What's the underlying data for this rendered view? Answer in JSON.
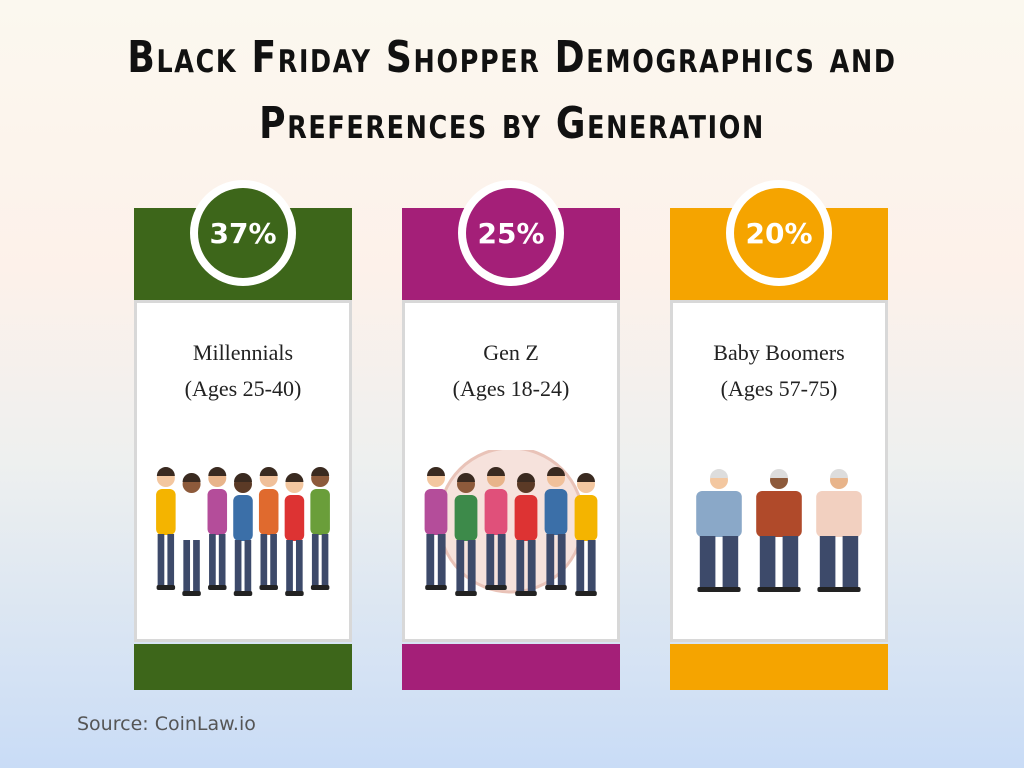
{
  "header": {
    "title_line_1": "Black Friday Shopper Demographics and",
    "title_line_2": "Preferences by Generation"
  },
  "cards": [
    {
      "percent": "37%",
      "label": "Millennials",
      "ages": "(Ages 25-40)",
      "color": "#3d661a"
    },
    {
      "percent": "25%",
      "label": "Gen Z",
      "ages": "(Ages 18-24)",
      "color": "#a41f78"
    },
    {
      "percent": "20%",
      "label": "Baby Boomers",
      "ages": "(Ages 57-75)",
      "color": "#f5a400"
    }
  ],
  "footer": {
    "source": "Source: CoinLaw.io"
  }
}
